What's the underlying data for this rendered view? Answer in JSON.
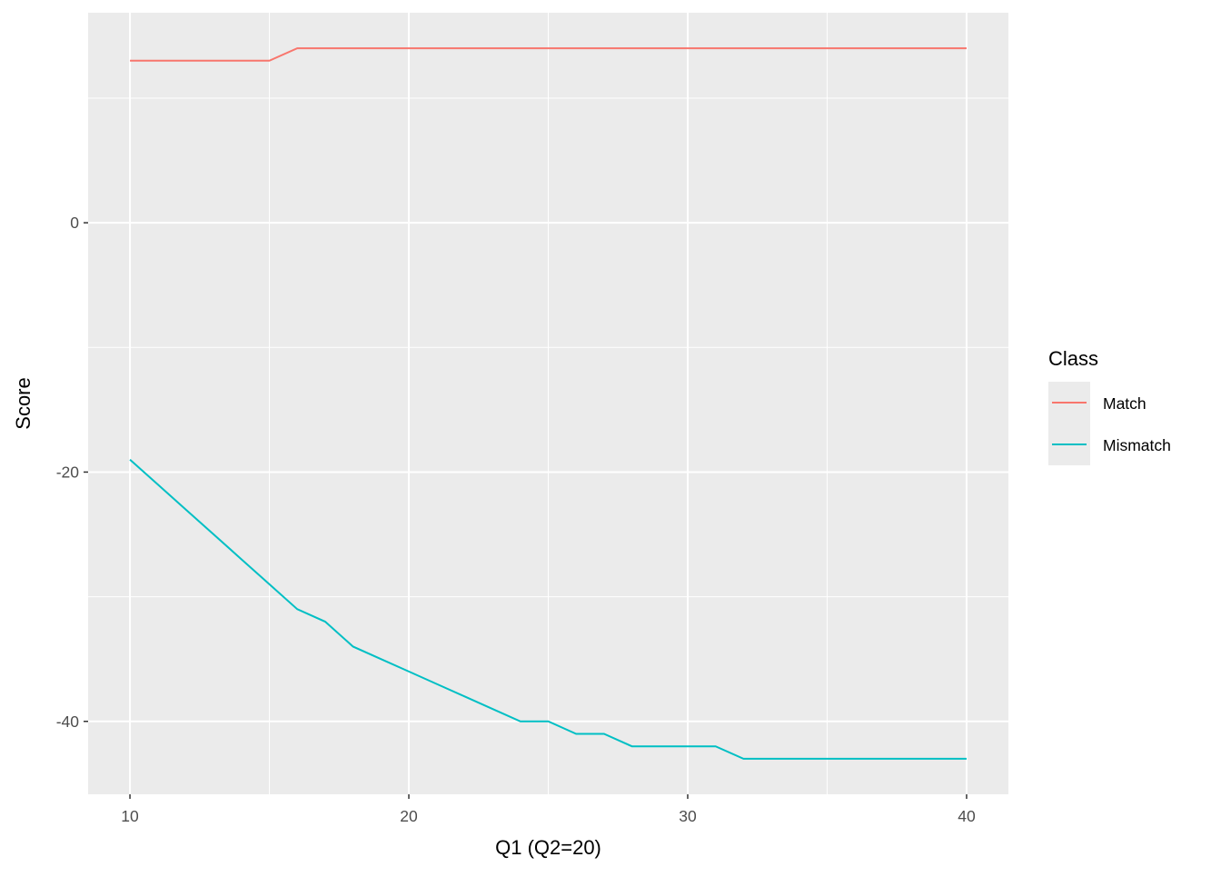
{
  "chart_data": {
    "type": "line",
    "title": "",
    "xlabel": "Q1 (Q2=20)",
    "ylabel": "Score",
    "xlim": [
      8.5,
      41.5
    ],
    "ylim": [
      -45.85,
      16.85
    ],
    "xticks": [
      10,
      20,
      30,
      40
    ],
    "yticks": [
      0,
      -20,
      -40
    ],
    "x_minor": [
      15,
      25,
      35
    ],
    "y_minor": [
      10,
      -10,
      -30
    ],
    "grid": true,
    "legend": {
      "title": "Class",
      "placement": "right"
    },
    "x": [
      10,
      11,
      12,
      13,
      14,
      15,
      16,
      17,
      18,
      19,
      20,
      21,
      22,
      23,
      24,
      25,
      26,
      27,
      28,
      29,
      30,
      31,
      32,
      33,
      34,
      35,
      36,
      37,
      38,
      39,
      40
    ],
    "series": [
      {
        "name": "Match",
        "color": "#F8766D",
        "values": [
          13,
          13,
          13,
          13,
          13,
          13,
          14,
          14,
          14,
          14,
          14,
          14,
          14,
          14,
          14,
          14,
          14,
          14,
          14,
          14,
          14,
          14,
          14,
          14,
          14,
          14,
          14,
          14,
          14,
          14,
          14
        ]
      },
      {
        "name": "Mismatch",
        "color": "#00BFC4",
        "values": [
          -19,
          -21,
          -23,
          -25,
          -27,
          -29,
          -31,
          -32,
          -34,
          -35,
          -36,
          -37,
          -38,
          -39,
          -40,
          -40,
          -41,
          -41,
          -42,
          -42,
          -42,
          -42,
          -43,
          -43,
          -43,
          -43,
          -43,
          -43,
          -43,
          -43,
          -43
        ]
      }
    ]
  }
}
